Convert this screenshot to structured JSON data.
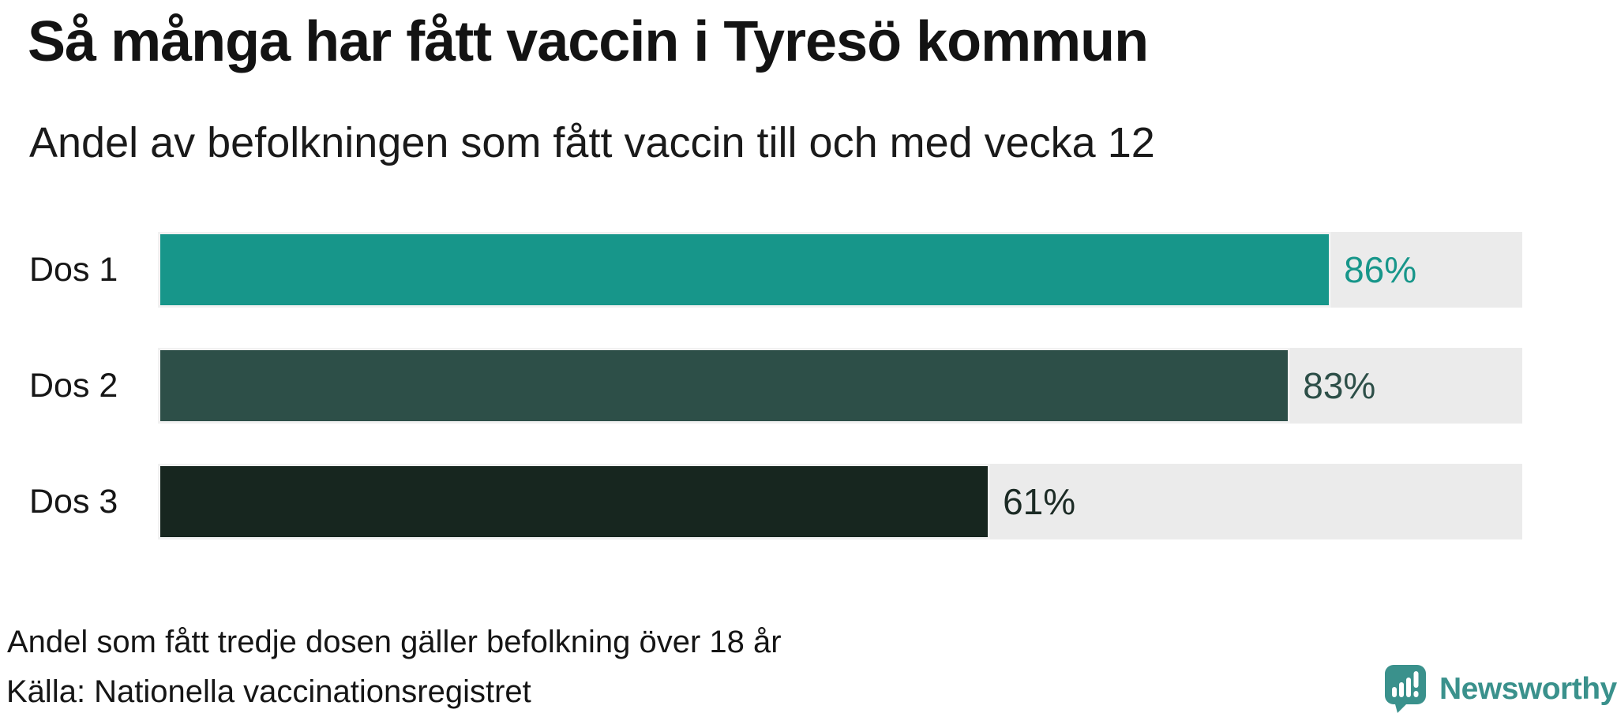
{
  "header": {
    "title": "Så många har fått vaccin i Tyresö kommun",
    "subtitle": "Andel av befolkningen som fått vaccin till och med vecka 12"
  },
  "chart_data": {
    "type": "bar",
    "orientation": "horizontal",
    "title": "Så många har fått vaccin i Tyresö kommun",
    "subtitle": "Andel av befolkningen som fått vaccin till och med vecka 12",
    "categories": [
      "Dos 1",
      "Dos 2",
      "Dos 3"
    ],
    "values": [
      86,
      83,
      61
    ],
    "value_labels": [
      "86%",
      "83%",
      "61%"
    ],
    "unit": "%",
    "xlim": [
      0,
      100
    ],
    "grid": false,
    "legend": false,
    "bar_colors": [
      "#17968a",
      "#2d4f48",
      "#17261f"
    ],
    "value_colors": [
      "#17968a",
      "#2d4f48",
      "#1c2b25"
    ],
    "track_color": "#ebebeb",
    "note": "Andel som fått tredje dosen gäller befolkning över 18 år",
    "source": "Källa: Nationella vaccinationsregistret"
  },
  "footer": {
    "note": "Andel som fått tredje dosen gäller befolkning över 18 år",
    "source": "Källa: Nationella vaccinationsregistret",
    "logo_text": "Newsworthy",
    "logo_color": "#3a918c"
  }
}
